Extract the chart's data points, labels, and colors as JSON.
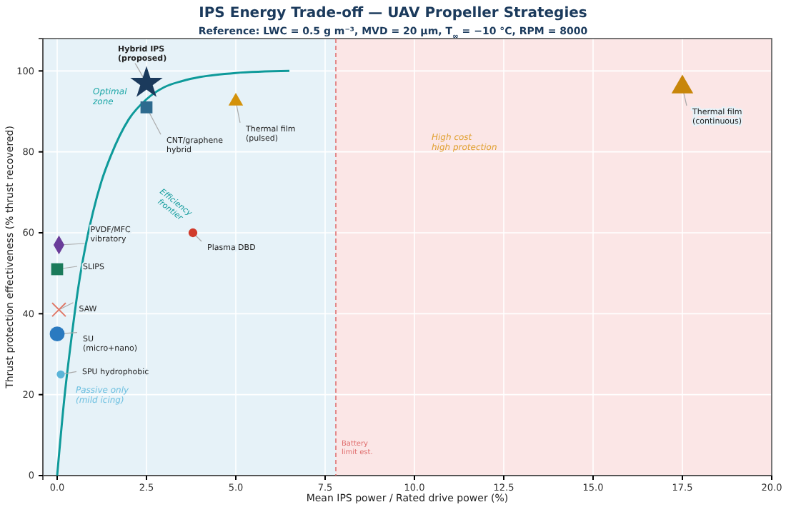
{
  "chart_data": {
    "type": "scatter",
    "title": "IPS Energy Trade-off — UAV Propeller Strategies",
    "subtitle": "Reference: LWC = 0.5 g m⁻³,  MVD = 20 μm,  T$_{∞}$ = −10 °C,  RPM = 8000",
    "xlabel": "Mean IPS power / Rated drive power  (%)",
    "ylabel": "Thrust protection effectiveness  (% thrust recovered)",
    "xlim": [
      -0.4,
      20
    ],
    "ylim": [
      0,
      108
    ],
    "xticks": [
      {
        "value": 0,
        "label": "0.0"
      },
      {
        "value": 2.5,
        "label": "2.5"
      },
      {
        "value": 5,
        "label": "5.0"
      },
      {
        "value": 7.5,
        "label": "7.5"
      },
      {
        "value": 10,
        "label": "10.0"
      },
      {
        "value": 12.5,
        "label": "12.5"
      },
      {
        "value": 15,
        "label": "15.0"
      },
      {
        "value": 17.5,
        "label": "17.5"
      },
      {
        "value": 20,
        "label": "20.0"
      }
    ],
    "yticks": [
      0,
      20,
      40,
      60,
      80,
      100
    ],
    "grid": true,
    "legend": false,
    "bands": [
      {
        "axis": "x",
        "from": -0.4,
        "to": 7.8,
        "color": "#e6f2f8"
      },
      {
        "axis": "x",
        "from": 7.8,
        "to": 20,
        "color": "#fbe6e6"
      }
    ],
    "ref_lines": [
      {
        "axis": "x",
        "value": 7.8,
        "label": "Battery limit est.",
        "color": "#e07070",
        "line_style": "dashed"
      }
    ],
    "annotations": [
      "Optimal zone",
      "Passive only (mild icing)",
      "High cost high protection"
    ],
    "series": [
      {
        "name": "Efficiency frontier",
        "type": "line",
        "color": "#0e9a9a",
        "marker": "none",
        "line_style": "solid",
        "x": [
          0,
          0.2,
          0.4,
          0.6,
          0.8,
          1.0,
          1.25,
          1.5,
          2,
          2.5,
          3,
          3.5,
          4,
          5,
          6.5
        ],
        "values": [
          0,
          19,
          34,
          47,
          57,
          65,
          73,
          79,
          88,
          93,
          96,
          97.5,
          98.5,
          99.5,
          100
        ]
      },
      {
        "name": "Hybrid IPS (proposed)",
        "color": "#1b3a5c",
        "marker": "star",
        "x": [
          2.5
        ],
        "values": [
          97
        ]
      },
      {
        "name": "CNT/graphene hybrid",
        "color": "#2d6a8e",
        "marker": "square",
        "x": [
          2.5
        ],
        "values": [
          91
        ]
      },
      {
        "name": "Thermal film (pulsed)",
        "color": "#d4920a",
        "marker": "triangle",
        "x": [
          5.0
        ],
        "values": [
          92.5
        ]
      },
      {
        "name": "Thermal film (continuous)",
        "color": "#c8860a",
        "marker": "triangle",
        "x": [
          17.5
        ],
        "values": [
          96
        ]
      },
      {
        "name": "Plasma DBD",
        "color": "#d03a2a",
        "marker": "circle",
        "x": [
          3.8
        ],
        "values": [
          60
        ]
      },
      {
        "name": "PVDF/MFC vibratory",
        "color": "#6a3d9a",
        "marker": "diamond",
        "x": [
          0.05
        ],
        "values": [
          57
        ]
      },
      {
        "name": "SLIPS",
        "color": "#1a7a5a",
        "marker": "square",
        "x": [
          0
        ],
        "values": [
          51
        ]
      },
      {
        "name": "SAW",
        "color": "#e07a6a",
        "marker": "cross",
        "x": [
          0.05
        ],
        "values": [
          41
        ]
      },
      {
        "name": "SU (micro+nano)",
        "color": "#2a7ac0",
        "marker": "circle",
        "x": [
          0
        ],
        "values": [
          35
        ]
      },
      {
        "name": "SPU hydrophobic",
        "color": "#5ab4d8",
        "marker": "circle",
        "x": [
          0.1
        ],
        "values": [
          25
        ]
      }
    ]
  }
}
